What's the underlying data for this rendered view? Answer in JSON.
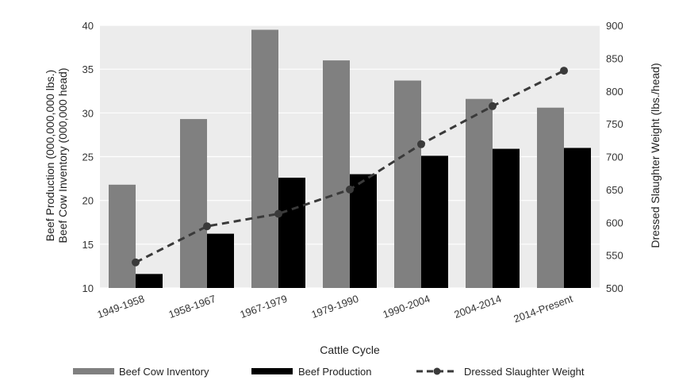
{
  "chart_data": {
    "type": "bar",
    "categories": [
      "1949-1958",
      "1958-1967",
      "1967-1979",
      "1979-1990",
      "1990-2004",
      "2004-2014",
      "2014-Present"
    ],
    "series": [
      {
        "name": "Beef Cow Inventory",
        "axis": "left",
        "kind": "bar",
        "color": "#808080",
        "values": [
          21.8,
          29.3,
          39.5,
          36.0,
          33.7,
          31.6,
          30.6
        ]
      },
      {
        "name": "Beef Production",
        "axis": "left",
        "kind": "bar",
        "color": "#000000",
        "values": [
          11.6,
          16.2,
          22.6,
          23.0,
          25.1,
          25.9,
          26.0
        ]
      },
      {
        "name": "Dressed Slaughter Weight",
        "axis": "right",
        "kind": "line",
        "style": "dashed",
        "color": "#3a3a3a",
        "values": [
          539,
          594,
          613,
          650,
          719,
          777,
          831
        ]
      }
    ],
    "xlabel": "Cattle Cycle",
    "ylabel_left": [
      "Beef Production (000,000,000 lbs.)",
      "Beef Cow Inventory (000,000 head)"
    ],
    "ylabel_right": "Dressed Slaughter Weight (lbs./head)",
    "ylim_left": [
      10,
      40
    ],
    "yticks_left": [
      "10",
      "15",
      "20",
      "25",
      "30",
      "35",
      "40"
    ],
    "ylim_right": [
      500,
      900
    ],
    "yticks_right": [
      "500",
      "550",
      "600",
      "650",
      "700",
      "750",
      "800",
      "850",
      "900"
    ],
    "grid": "horizontal",
    "plot_background": "#ececec",
    "legend_position": "bottom"
  }
}
